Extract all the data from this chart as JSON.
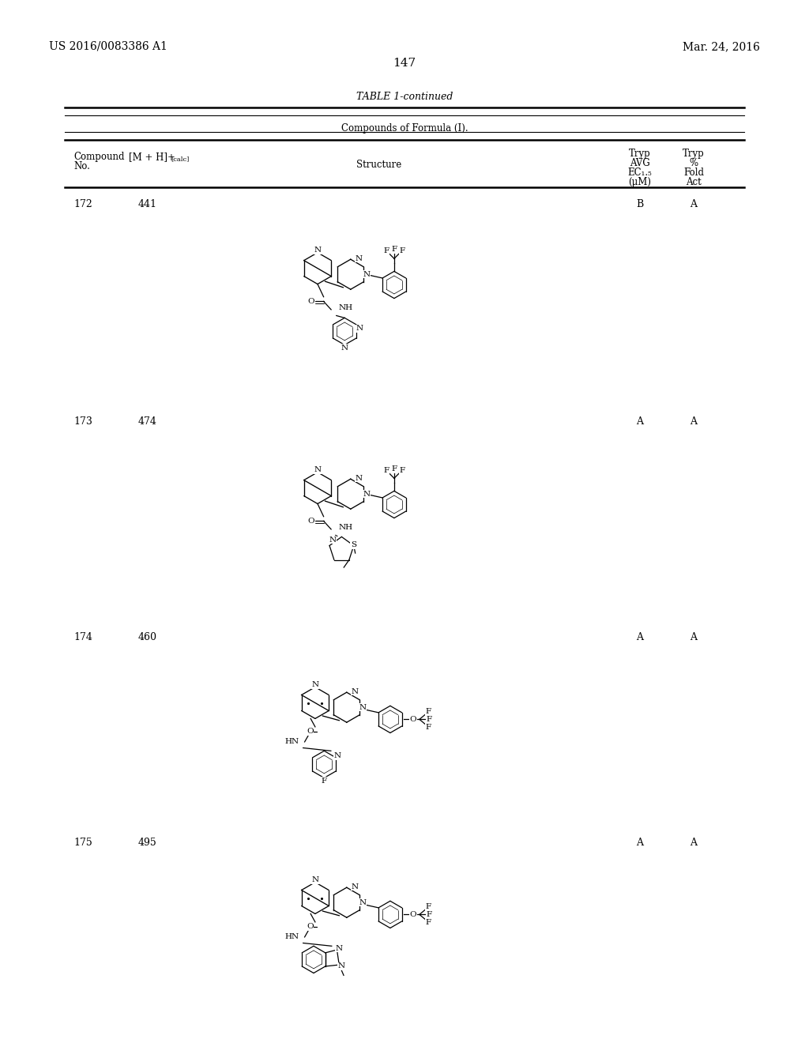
{
  "background_color": "#ffffff",
  "page_number": "147",
  "top_left_text": "US 2016/0083386 A1",
  "top_right_text": "Mar. 24, 2016",
  "table_title": "TABLE 1-continued",
  "table_subtitle": "Compounds of Formula (I).",
  "compounds": [
    {
      "no": "172",
      "mh": "441",
      "tryp1": "B",
      "tryp2": "A"
    },
    {
      "no": "173",
      "mh": "474",
      "tryp1": "A",
      "tryp2": "A"
    },
    {
      "no": "174",
      "mh": "460",
      "tryp1": "A",
      "tryp2": "A"
    },
    {
      "no": "175",
      "mh": "495",
      "tryp1": "A",
      "tryp2": "A"
    }
  ]
}
